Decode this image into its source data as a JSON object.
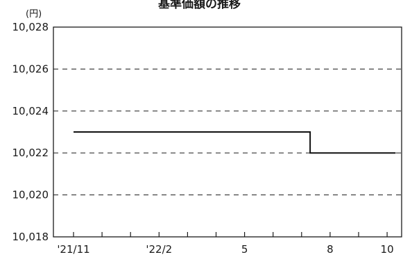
{
  "unit_label": "(円)",
  "chart_data": {
    "type": "line",
    "title": "基準価額の推移",
    "xlabel": "",
    "ylabel": "(円)",
    "ylim": [
      10018,
      10028
    ],
    "y_ticks": [
      10018,
      10020,
      10022,
      10024,
      10026,
      10028
    ],
    "y_tick_labels": [
      "10,018",
      "10,020",
      "10,022",
      "10,024",
      "10,026",
      "10,028"
    ],
    "x_tick_labels": [
      {
        "label": "'21/11",
        "month_index": 0
      },
      {
        "label": "'22/2",
        "month_index": 3
      },
      {
        "label": "5",
        "month_index": 6
      },
      {
        "label": "8",
        "month_index": 9
      },
      {
        "label": "10",
        "month_index": 11
      }
    ],
    "grid": "horizontal-dashed",
    "series": [
      {
        "values": [
          {
            "month_index": 0,
            "y": 10023
          },
          {
            "month_index": 8.3,
            "y": 10023
          },
          {
            "month_index": 8.3,
            "y": 10022
          },
          {
            "month_index": 11.3,
            "y": 10022
          }
        ],
        "color": "#111111"
      }
    ]
  }
}
